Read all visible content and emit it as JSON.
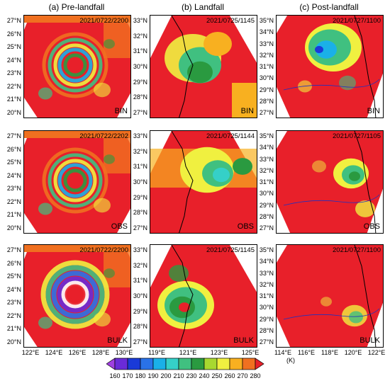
{
  "columns": [
    "(a) Pre-landfall",
    "(b) Landfall",
    "(c) Post-landfall"
  ],
  "panels": [
    {
      "stamp": "2021/0722/2200",
      "tag": "BIN"
    },
    {
      "stamp": "2021/0725/1145",
      "tag": "BIN"
    },
    {
      "stamp": "2021/0727/1100",
      "tag": "BIN"
    },
    {
      "stamp": "2021/0722/2202",
      "tag": "OBS"
    },
    {
      "stamp": "2021/0725/1144",
      "tag": "OBS"
    },
    {
      "stamp": "2021/0727/1105",
      "tag": "OBS"
    },
    {
      "stamp": "2021/0722/2200",
      "tag": "BULK"
    },
    {
      "stamp": "2021/0725/1145",
      "tag": "BULK"
    },
    {
      "stamp": "2021/0727/1100",
      "tag": "BULK"
    }
  ],
  "lat_labels": {
    "a": [
      "27°N",
      "26°N",
      "25°N",
      "24°N",
      "23°N",
      "22°N",
      "21°N",
      "20°N"
    ],
    "b": [
      "33°N",
      "32°N",
      "31°N",
      "30°N",
      "29°N",
      "28°N",
      "27°N"
    ],
    "c": [
      "35°N",
      "34°N",
      "33°N",
      "32°N",
      "31°N",
      "30°N",
      "29°N",
      "28°N",
      "27°N"
    ]
  },
  "lon_labels": {
    "a": [
      "122°E",
      "124°E",
      "126°E",
      "128°E",
      "130°E"
    ],
    "b": [
      "119°E",
      "121°E",
      "123°E",
      "125°E"
    ],
    "c": [
      "114°E",
      "116°E",
      "118°E",
      "120°E",
      "122°E"
    ]
  },
  "colorbar": {
    "ticks": [
      "160",
      "170",
      "180",
      "190",
      "200",
      "210",
      "230",
      "240",
      "250",
      "260",
      "270",
      "280"
    ],
    "unit": "(K)",
    "colors": [
      "#a040e0",
      "#6a2bd8",
      "#1a3ad8",
      "#2a72e8",
      "#1ab0e8",
      "#35d0c8",
      "#40c080",
      "#2a9a40",
      "#a8d830",
      "#f0f040",
      "#f8b020",
      "#f07020",
      "#e8202a"
    ]
  }
}
